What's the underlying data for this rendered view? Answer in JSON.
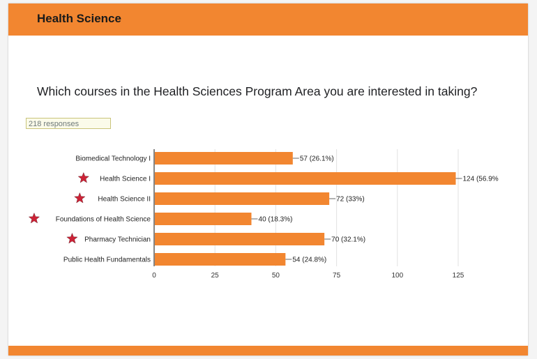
{
  "section": {
    "title": "Health Science"
  },
  "question": {
    "text": "Which courses in the Health Sciences Program Area you are interested in taking?"
  },
  "responses": {
    "label": "218 responses"
  },
  "colors": {
    "bar": "#f28630",
    "star": "#cc2236",
    "header": "#f28630"
  },
  "chart_data": {
    "type": "bar",
    "orientation": "horizontal",
    "categories": [
      "Biomedical Technology I",
      "Health Science I",
      "Health Science II",
      "Foundations of Health Science",
      "Pharmacy Technician",
      "Public Health Fundamentals"
    ],
    "starred": [
      false,
      true,
      true,
      true,
      true,
      false
    ],
    "values": [
      57,
      124,
      72,
      40,
      70,
      54
    ],
    "data_labels": [
      "57 (26.1%)",
      "124 (56.9%",
      "72 (33%)",
      "40 (18.3%)",
      "70 (32.1%)",
      "54 (24.8%)"
    ],
    "xlim": [
      0,
      125
    ],
    "ticks": [
      0,
      25,
      50,
      75,
      100,
      125
    ],
    "tick_labels": [
      "0",
      "25",
      "50",
      "75",
      "100",
      "125"
    ],
    "grid": true
  }
}
